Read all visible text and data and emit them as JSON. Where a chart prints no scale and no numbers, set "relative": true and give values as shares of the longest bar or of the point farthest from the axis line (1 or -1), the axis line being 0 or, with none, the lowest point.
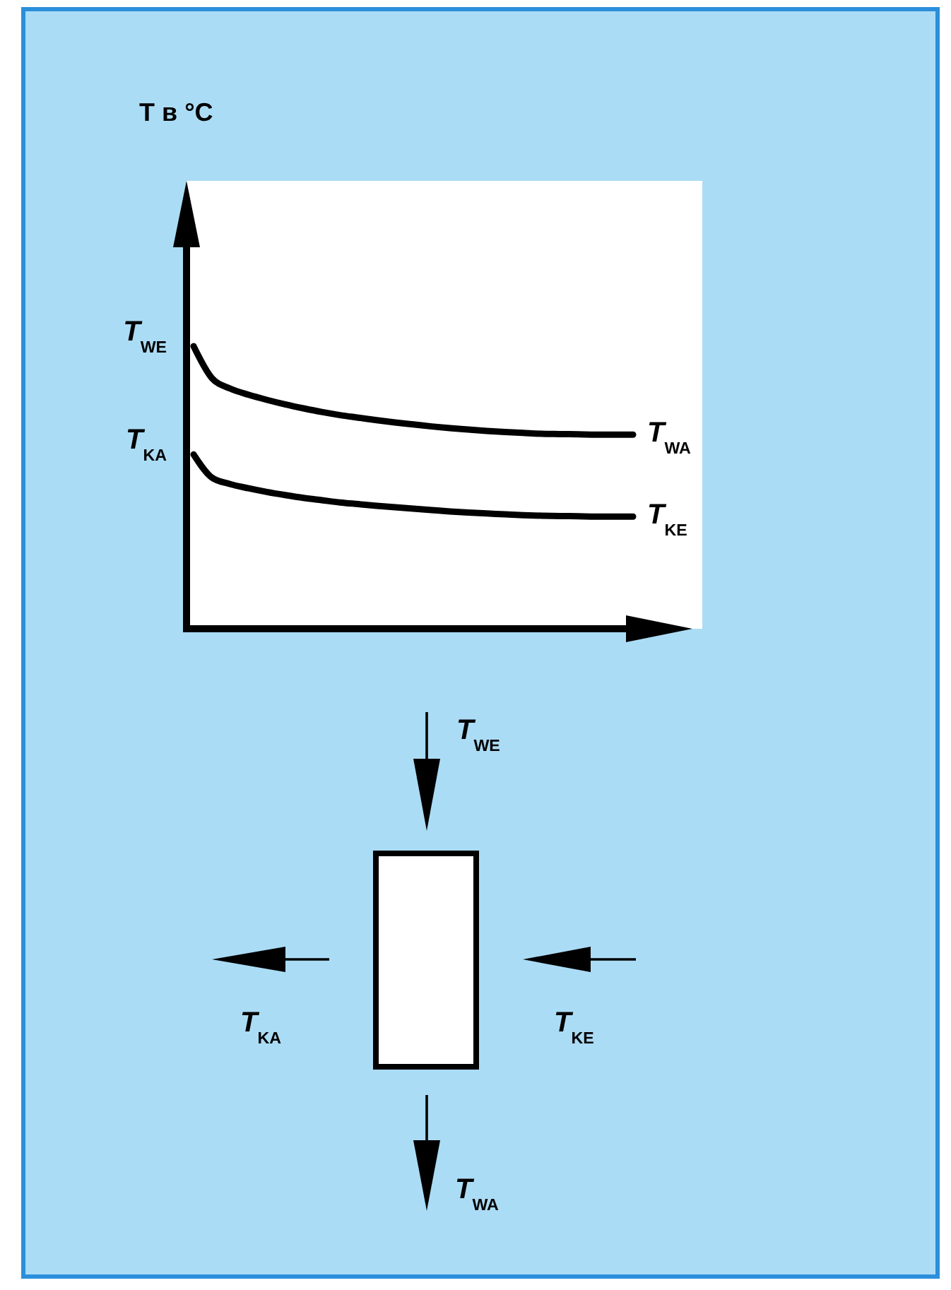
{
  "chart_data": [
    {
      "type": "line",
      "relative": true,
      "ylabel": "T в °C",
      "categories": [
        null,
        null,
        null,
        null,
        null,
        null,
        null,
        null,
        null,
        null,
        null,
        null,
        null,
        null,
        null,
        null,
        null,
        null,
        null,
        null,
        null,
        null,
        null,
        null,
        null
      ],
      "series": [
        {
          "name": "T$_{WA}$",
          "color": "#000000",
          "values": [
            1,
            0.887,
            0.85,
            0.828,
            0.81,
            0.794,
            0.78,
            0.767,
            0.756,
            0.747,
            0.738,
            0.73,
            0.723,
            0.716,
            0.71,
            0.705,
            0.7,
            0.696,
            0.693,
            0.69,
            0.689,
            0.688,
            0.687,
            0.687,
            0.687
          ]
        },
        {
          "name": "T$_{KE}$",
          "color": "#000000",
          "values": [
            0.617,
            0.535,
            0.512,
            0.497,
            0.484,
            0.473,
            0.463,
            0.455,
            0.447,
            0.441,
            0.435,
            0.43,
            0.425,
            0.42,
            0.415,
            0.411,
            0.408,
            0.405,
            0.402,
            0.4,
            0.399,
            0.398,
            0.397,
            0.397,
            0.397
          ]
        }
      ],
      "annotations": [
        "T$_{WE}$",
        "T$_{KA}$"
      ]
    },
    {
      "type": "other",
      "annotations": [
        "T$_{WE}$",
        "T$_{KA}$",
        "T$_{KE}$",
        "T$_{WA}$"
      ]
    }
  ]
}
